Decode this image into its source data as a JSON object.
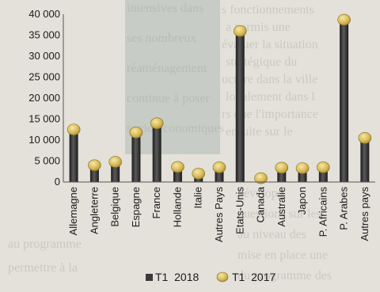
{
  "chart_data": {
    "type": "bar",
    "categories": [
      "Allemagne",
      "Angleterre",
      "Belgique",
      "Espagne",
      "France",
      "Hollande",
      "Italie",
      "Autres Pays",
      "Etats-Unis",
      "Canada",
      "Australie",
      "Japon",
      "P. Africains",
      "P. Arabes",
      "Autres pays"
    ],
    "series": [
      {
        "name": "T1  2018",
        "type": "bar",
        "values": [
          12000,
          3500,
          4200,
          11500,
          13500,
          3200,
          1500,
          3000,
          35500,
          800,
          2900,
          2800,
          3000,
          38300,
          10000
        ]
      },
      {
        "name": "T1  2017",
        "type": "scatter",
        "values": [
          12500,
          4000,
          4800,
          11800,
          14000,
          3600,
          2000,
          3500,
          36000,
          900,
          3400,
          3300,
          3500,
          38700,
          10500
        ]
      }
    ],
    "yticks": [
      "0",
      "5 000",
      "10 000",
      "15 000",
      "20 000",
      "25 000",
      "30 000",
      "35 000",
      "40 000"
    ],
    "ylim": [
      0,
      40000
    ],
    "legend": "bottom",
    "grid": false,
    "colors": {
      "bar": "#2e2e2e",
      "marker": "#d8bc5a"
    }
  }
}
